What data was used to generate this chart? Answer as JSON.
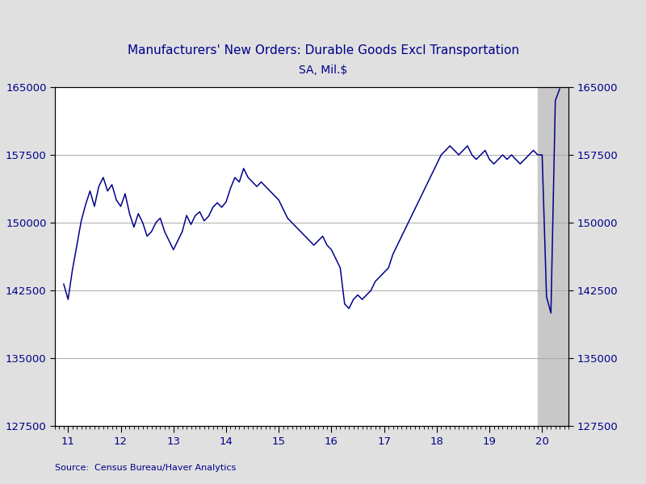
{
  "title": "Manufacturers' New Orders: Durable Goods Excl Transportation",
  "subtitle": "SA, Mil.$",
  "source": "Source:  Census Bureau/Haver Analytics",
  "line_color": "#00008B",
  "background_color": "#E0E0E0",
  "plot_background_color": "#FFFFFF",
  "shade_color": "#C8C8C8",
  "ylim": [
    127500,
    165000
  ],
  "yticks": [
    127500,
    135000,
    142500,
    150000,
    157500,
    165000
  ],
  "xlim": [
    2010.75,
    2020.5
  ],
  "shade_start": 2019.917,
  "shade_end": 2020.5,
  "xtick_positions": [
    2011,
    2012,
    2013,
    2014,
    2015,
    2016,
    2017,
    2018,
    2019,
    2020
  ],
  "xtick_labels": [
    "11",
    "12",
    "13",
    "14",
    "15",
    "16",
    "17",
    "18",
    "19",
    "20"
  ],
  "data": {
    "dates": [
      2010.917,
      2011.0,
      2011.083,
      2011.167,
      2011.25,
      2011.333,
      2011.417,
      2011.5,
      2011.583,
      2011.667,
      2011.75,
      2011.833,
      2011.917,
      2012.0,
      2012.083,
      2012.167,
      2012.25,
      2012.333,
      2012.417,
      2012.5,
      2012.583,
      2012.667,
      2012.75,
      2012.833,
      2012.917,
      2013.0,
      2013.083,
      2013.167,
      2013.25,
      2013.333,
      2013.417,
      2013.5,
      2013.583,
      2013.667,
      2013.75,
      2013.833,
      2013.917,
      2014.0,
      2014.083,
      2014.167,
      2014.25,
      2014.333,
      2014.417,
      2014.5,
      2014.583,
      2014.667,
      2014.75,
      2014.833,
      2014.917,
      2015.0,
      2015.083,
      2015.167,
      2015.25,
      2015.333,
      2015.417,
      2015.5,
      2015.583,
      2015.667,
      2015.75,
      2015.833,
      2015.917,
      2016.0,
      2016.083,
      2016.167,
      2016.25,
      2016.333,
      2016.417,
      2016.5,
      2016.583,
      2016.667,
      2016.75,
      2016.833,
      2016.917,
      2017.0,
      2017.083,
      2017.167,
      2017.25,
      2017.333,
      2017.417,
      2017.5,
      2017.583,
      2017.667,
      2017.75,
      2017.833,
      2017.917,
      2018.0,
      2018.083,
      2018.167,
      2018.25,
      2018.333,
      2018.417,
      2018.5,
      2018.583,
      2018.667,
      2018.75,
      2018.833,
      2018.917,
      2019.0,
      2019.083,
      2019.167,
      2019.25,
      2019.333,
      2019.417,
      2019.5,
      2019.583,
      2019.667,
      2019.75,
      2019.833,
      2019.917,
      2020.0,
      2020.083,
      2020.167,
      2020.25,
      2020.333
    ],
    "values": [
      143200,
      141500,
      144800,
      147500,
      150200,
      152000,
      153500,
      151800,
      154000,
      155000,
      153500,
      154200,
      152500,
      151800,
      153200,
      151000,
      149500,
      151000,
      150000,
      148500,
      149000,
      150000,
      150500,
      149000,
      148000,
      147000,
      148000,
      149000,
      150800,
      149800,
      150800,
      151200,
      150200,
      150700,
      151700,
      152200,
      151700,
      152300,
      153800,
      155000,
      154500,
      156000,
      155000,
      154500,
      154000,
      154500,
      154000,
      153500,
      153000,
      152500,
      151500,
      150500,
      150000,
      149500,
      149000,
      148500,
      148000,
      147500,
      148000,
      148500,
      147500,
      147000,
      146000,
      145000,
      141000,
      140500,
      141500,
      142000,
      141500,
      142000,
      142500,
      143500,
      144000,
      144500,
      145000,
      146500,
      147500,
      148500,
      149500,
      150500,
      151500,
      152500,
      153500,
      154500,
      155500,
      156500,
      157500,
      158000,
      158500,
      158000,
      157500,
      158000,
      158500,
      157500,
      157000,
      157500,
      158000,
      157000,
      156500,
      157000,
      157500,
      157000,
      157500,
      157000,
      156500,
      157000,
      157500,
      158000,
      157500,
      157500,
      141800,
      140000,
      163500,
      164800
    ]
  }
}
